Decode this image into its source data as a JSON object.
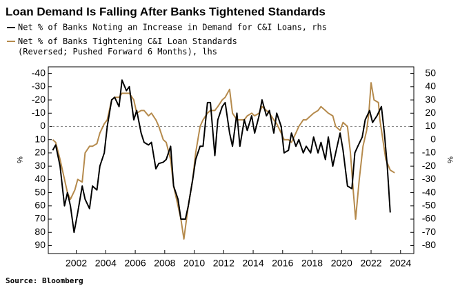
{
  "chart_data": {
    "type": "line",
    "title": "Loan Demand Is Falling After Banks Tightened Standards",
    "source": "Source: Bloomberg",
    "y_label": "%",
    "y2_label": "%",
    "xlim": [
      2000.1,
      2024.9
    ],
    "xticks": [
      2002,
      2004,
      2006,
      2008,
      2010,
      2012,
      2014,
      2016,
      2018,
      2020,
      2022,
      2024
    ],
    "ylim": [
      -45,
      96
    ],
    "y_reversed": true,
    "yticks": [
      -40,
      -30,
      -20,
      -10,
      0,
      10,
      20,
      30,
      40,
      50,
      60,
      70,
      80,
      90
    ],
    "y2lim": [
      -86,
      55
    ],
    "y2ticks": [
      50,
      40,
      30,
      20,
      10,
      0,
      -10,
      -20,
      -30,
      -40,
      -50,
      -60,
      -70,
      -80
    ],
    "hline": 0,
    "series": [
      {
        "name": "Net % of Banks Noting an Increase in Demand for C&I Loans, rhs",
        "color": "#000000",
        "axis": "y2",
        "x": [
          2000.4,
          2000.6,
          2000.9,
          2001.2,
          2001.4,
          2001.6,
          2001.85,
          2002.1,
          2002.4,
          2002.6,
          2002.9,
          2003.1,
          2003.4,
          2003.6,
          2003.9,
          2004.1,
          2004.4,
          2004.6,
          2004.9,
          2005.1,
          2005.4,
          2005.6,
          2005.9,
          2006.1,
          2006.4,
          2006.6,
          2006.9,
          2007.1,
          2007.4,
          2007.6,
          2007.9,
          2008.1,
          2008.4,
          2008.6,
          2008.9,
          2009.1,
          2009.4,
          2009.6,
          2009.9,
          2010.1,
          2010.4,
          2010.6,
          2010.9,
          2011.1,
          2011.4,
          2011.6,
          2011.9,
          2012.1,
          2012.4,
          2012.6,
          2012.9,
          2013.1,
          2013.4,
          2013.6,
          2013.9,
          2014.1,
          2014.4,
          2014.6,
          2014.9,
          2015.1,
          2015.4,
          2015.6,
          2015.9,
          2016.1,
          2016.4,
          2016.6,
          2016.9,
          2017.1,
          2017.4,
          2017.6,
          2017.9,
          2018.1,
          2018.4,
          2018.6,
          2018.9,
          2019.1,
          2019.4,
          2019.6,
          2019.9,
          2020.1,
          2020.4,
          2020.7,
          2020.9,
          2021.1,
          2021.4,
          2021.6,
          2021.9,
          2022.1,
          2022.4,
          2022.7,
          2022.9,
          2023.1,
          2023.3
        ],
        "values": [
          -8,
          -4,
          -20,
          -50,
          -40,
          -50,
          -70,
          -55,
          -35,
          -45,
          -52,
          -35,
          -38,
          -20,
          -10,
          10,
          30,
          32,
          25,
          45,
          37,
          40,
          15,
          22,
          5,
          -2,
          -4,
          -2,
          -22,
          -18,
          -17,
          -15,
          -5,
          -35,
          -45,
          -60,
          -60,
          -50,
          -30,
          -15,
          -5,
          -5,
          28,
          28,
          -12,
          15,
          25,
          28,
          5,
          -5,
          20,
          -5,
          15,
          7,
          18,
          5,
          18,
          30,
          18,
          22,
          5,
          20,
          10,
          -10,
          -8,
          5,
          -5,
          0,
          -10,
          -5,
          -10,
          2,
          -10,
          -2,
          -15,
          2,
          -20,
          -10,
          5,
          -8,
          -35,
          -37,
          -10,
          -5,
          2,
          15,
          22,
          13,
          18,
          25,
          5,
          -20,
          -55
        ]
      },
      {
        "name": "Net % of Banks Tightening C&I Loan Standards\n(Reversed; Pushed Forward 6 Months), lhs",
        "color": "#b58a4c",
        "axis": "y",
        "x": [
          2000.4,
          2000.6,
          2000.9,
          2001.1,
          2001.4,
          2001.6,
          2001.9,
          2002.1,
          2002.4,
          2002.6,
          2002.9,
          2003.1,
          2003.4,
          2003.6,
          2003.9,
          2004.1,
          2004.4,
          2004.6,
          2004.9,
          2005.1,
          2005.4,
          2005.6,
          2005.9,
          2006.1,
          2006.4,
          2006.6,
          2006.9,
          2007.1,
          2007.4,
          2007.6,
          2007.9,
          2008.1,
          2008.4,
          2008.6,
          2008.9,
          2009.1,
          2009.3,
          2009.6,
          2009.9,
          2010.1,
          2010.4,
          2010.6,
          2010.9,
          2011.1,
          2011.4,
          2011.6,
          2011.9,
          2012.1,
          2012.4,
          2012.6,
          2012.9,
          2013.1,
          2013.4,
          2013.6,
          2013.9,
          2014.1,
          2014.4,
          2014.6,
          2014.9,
          2015.1,
          2015.4,
          2015.6,
          2015.9,
          2016.1,
          2016.4,
          2016.6,
          2016.9,
          2017.1,
          2017.4,
          2017.6,
          2017.9,
          2018.1,
          2018.4,
          2018.6,
          2018.9,
          2019.1,
          2019.4,
          2019.6,
          2019.9,
          2020.1,
          2020.4,
          2020.6,
          2020.8,
          2020.95,
          2021.2,
          2021.45,
          2021.7,
          2021.85,
          2022.0,
          2022.2,
          2022.5,
          2022.6,
          2022.8,
          2023.0,
          2023.3,
          2023.6
        ],
        "values": [
          10,
          12,
          25,
          35,
          50,
          55,
          48,
          40,
          42,
          20,
          15,
          15,
          13,
          5,
          -2,
          -5,
          -20,
          -22,
          -22,
          -25,
          -25,
          -25,
          -20,
          -10,
          -12,
          -12,
          -8,
          -10,
          -5,
          0,
          10,
          12,
          25,
          45,
          60,
          70,
          85,
          60,
          40,
          20,
          0,
          -5,
          -10,
          -12,
          -12,
          -15,
          -20,
          -22,
          -28,
          -10,
          -5,
          -5,
          -5,
          -8,
          -10,
          -8,
          -10,
          -15,
          -12,
          -10,
          -5,
          -2,
          5,
          10,
          10,
          12,
          5,
          0,
          -5,
          -5,
          -8,
          -10,
          -12,
          -15,
          -12,
          -10,
          -8,
          0,
          3,
          -3,
          0,
          20,
          50,
          70,
          40,
          15,
          3,
          -10,
          -33,
          -20,
          -18,
          -5,
          10,
          25,
          33,
          35
        ]
      }
    ]
  }
}
